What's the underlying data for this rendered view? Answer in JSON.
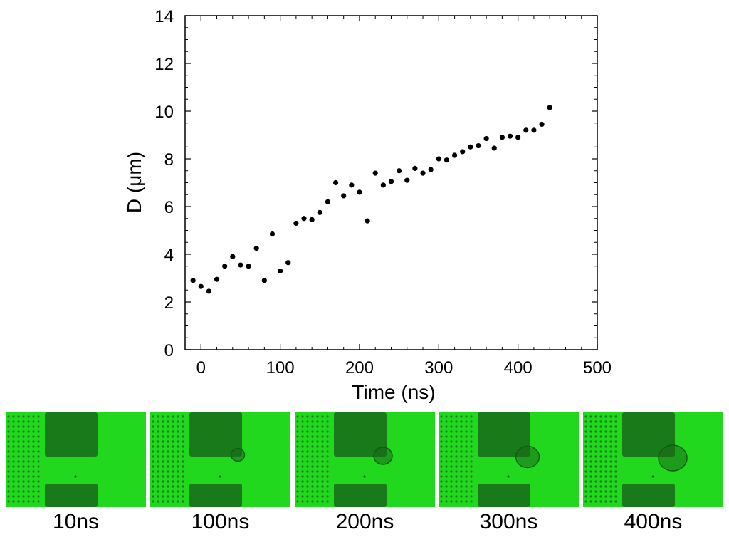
{
  "chart_data": {
    "type": "scatter",
    "title": "",
    "xlabel": "Time (ns)",
    "ylabel": "D (μm)",
    "xlim": [
      -20,
      500
    ],
    "ylim": [
      0,
      14
    ],
    "xticks": [
      0,
      100,
      200,
      300,
      400,
      500
    ],
    "yticks": [
      0,
      2,
      4,
      6,
      8,
      10,
      12,
      14
    ],
    "grid": false,
    "legend": "none",
    "marker_color": "#000000",
    "points": [
      {
        "x": -10,
        "y": 2.9
      },
      {
        "x": 0,
        "y": 2.65
      },
      {
        "x": 10,
        "y": 2.45
      },
      {
        "x": 20,
        "y": 2.95
      },
      {
        "x": 30,
        "y": 3.5
      },
      {
        "x": 40,
        "y": 3.9
      },
      {
        "x": 50,
        "y": 3.55
      },
      {
        "x": 60,
        "y": 3.5
      },
      {
        "x": 70,
        "y": 4.25
      },
      {
        "x": 80,
        "y": 2.9
      },
      {
        "x": 90,
        "y": 4.85
      },
      {
        "x": 100,
        "y": 3.3
      },
      {
        "x": 110,
        "y": 3.65
      },
      {
        "x": 120,
        "y": 5.3
      },
      {
        "x": 130,
        "y": 5.5
      },
      {
        "x": 140,
        "y": 5.45
      },
      {
        "x": 150,
        "y": 5.75
      },
      {
        "x": 160,
        "y": 6.2
      },
      {
        "x": 170,
        "y": 7.0
      },
      {
        "x": 180,
        "y": 6.45
      },
      {
        "x": 190,
        "y": 6.9
      },
      {
        "x": 200,
        "y": 6.6
      },
      {
        "x": 210,
        "y": 5.4
      },
      {
        "x": 220,
        "y": 7.4
      },
      {
        "x": 230,
        "y": 6.9
      },
      {
        "x": 240,
        "y": 7.05
      },
      {
        "x": 250,
        "y": 7.5
      },
      {
        "x": 260,
        "y": 7.1
      },
      {
        "x": 270,
        "y": 7.6
      },
      {
        "x": 280,
        "y": 7.4
      },
      {
        "x": 290,
        "y": 7.55
      },
      {
        "x": 300,
        "y": 8.0
      },
      {
        "x": 310,
        "y": 7.95
      },
      {
        "x": 320,
        "y": 8.15
      },
      {
        "x": 330,
        "y": 8.3
      },
      {
        "x": 340,
        "y": 8.5
      },
      {
        "x": 350,
        "y": 8.55
      },
      {
        "x": 360,
        "y": 8.85
      },
      {
        "x": 370,
        "y": 8.45
      },
      {
        "x": 380,
        "y": 8.9
      },
      {
        "x": 390,
        "y": 8.95
      },
      {
        "x": 400,
        "y": 8.9
      },
      {
        "x": 410,
        "y": 9.2
      },
      {
        "x": 420,
        "y": 9.2
      },
      {
        "x": 430,
        "y": 9.45
      },
      {
        "x": 440,
        "y": 10.15
      }
    ]
  },
  "frames": {
    "colors": {
      "background": "#22d81e",
      "electrode": "#187a19",
      "grid_dot": "#0f5e10",
      "bubble": "#1a6a1a"
    },
    "items": [
      {
        "label": "10ns",
        "bubble": 0
      },
      {
        "label": "100ns",
        "bubble": 0.25
      },
      {
        "label": "200ns",
        "bubble": 0.5
      },
      {
        "label": "300ns",
        "bubble": 0.75
      },
      {
        "label": "400ns",
        "bubble": 1.0
      }
    ]
  }
}
